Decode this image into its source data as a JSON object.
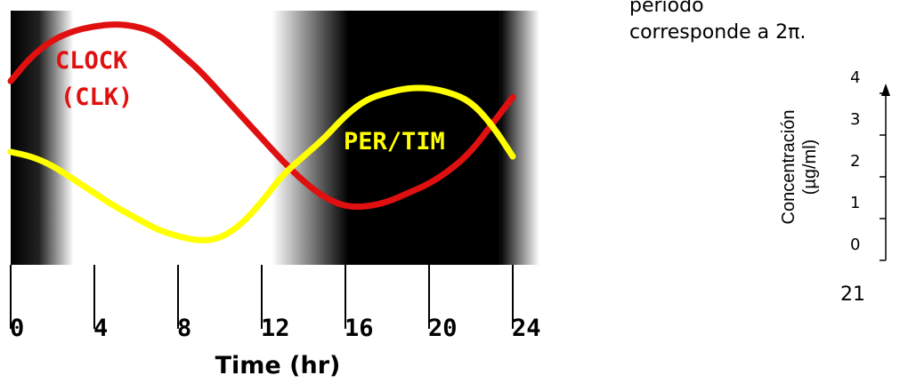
{
  "side_text": {
    "line1": "período",
    "line2": "corresponde a 2π."
  },
  "chart_data": [
    {
      "type": "line",
      "xlabel": "Time (hr)",
      "xlim": [
        0,
        25
      ],
      "x_ticks": [
        0,
        4,
        8,
        12,
        16,
        20,
        24
      ],
      "x_tick_labels": [
        "0",
        "4",
        "8",
        "12",
        "16",
        "20",
        "24"
      ],
      "grid": false,
      "legend": "none",
      "dark_periods": [
        [
          0,
          3
        ],
        [
          13,
          25
        ]
      ],
      "series": [
        {
          "name": "CLOCK (CLK)",
          "label_lines": [
            "CLOCK",
            "(CLK)"
          ],
          "color": "#e01010",
          "x": [
            0,
            1,
            2,
            3,
            4,
            5,
            6,
            7,
            8,
            9,
            10,
            11,
            12,
            13,
            14,
            15,
            16,
            17,
            18,
            19,
            20,
            21,
            22,
            23,
            24
          ],
          "y": [
            0.75,
            0.86,
            0.93,
            0.97,
            0.99,
            1.0,
            0.99,
            0.96,
            0.88,
            0.8,
            0.7,
            0.6,
            0.5,
            0.4,
            0.31,
            0.24,
            0.2,
            0.2,
            0.22,
            0.26,
            0.3,
            0.36,
            0.44,
            0.56,
            0.68
          ]
        },
        {
          "name": "PER/TIM",
          "label_lines": [
            "PER/TIM"
          ],
          "color": "#ffff00",
          "x": [
            0,
            1,
            2,
            3,
            4,
            5,
            6,
            7,
            8,
            9,
            10,
            11,
            12,
            13,
            14,
            15,
            16,
            17,
            18,
            19,
            20,
            21,
            22,
            23,
            24
          ],
          "y": [
            0.44,
            0.42,
            0.38,
            0.32,
            0.26,
            0.2,
            0.15,
            0.1,
            0.07,
            0.05,
            0.06,
            0.12,
            0.22,
            0.34,
            0.42,
            0.5,
            0.6,
            0.67,
            0.7,
            0.72,
            0.72,
            0.7,
            0.66,
            0.56,
            0.42
          ]
        }
      ]
    },
    {
      "type": "line",
      "ylabel_lines": [
        "Concentración",
        "(µg/ml)"
      ],
      "ylim": [
        0,
        4
      ],
      "y_ticks": [
        0,
        1,
        2,
        3,
        4
      ],
      "y_tick_labels": [
        "0",
        "1",
        "2",
        "3",
        "4"
      ],
      "x_partial_label": "21"
    }
  ]
}
